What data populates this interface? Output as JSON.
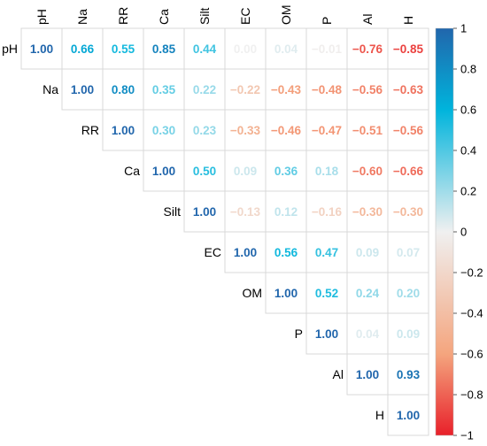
{
  "chart_data": {
    "type": "heatmap",
    "layout": "upper-triangle correlation matrix",
    "variables": [
      "pH",
      "Na",
      "RR",
      "Ca",
      "Silt",
      "EC",
      "OM",
      "P",
      "Al",
      "H"
    ],
    "matrix": [
      [
        1.0,
        0.66,
        0.55,
        0.85,
        0.44,
        0.0,
        0.04,
        -0.01,
        -0.76,
        -0.85
      ],
      [
        null,
        1.0,
        0.8,
        0.35,
        0.22,
        -0.22,
        -0.43,
        -0.48,
        -0.56,
        -0.63
      ],
      [
        null,
        null,
        1.0,
        0.3,
        0.23,
        -0.33,
        -0.46,
        -0.47,
        -0.51,
        -0.56
      ],
      [
        null,
        null,
        null,
        1.0,
        0.5,
        0.09,
        0.36,
        0.18,
        -0.6,
        -0.66
      ],
      [
        null,
        null,
        null,
        null,
        1.0,
        -0.13,
        0.12,
        -0.16,
        -0.3,
        -0.3
      ],
      [
        null,
        null,
        null,
        null,
        null,
        1.0,
        0.56,
        0.47,
        0.09,
        0.07
      ],
      [
        null,
        null,
        null,
        null,
        null,
        null,
        1.0,
        0.52,
        0.24,
        0.2
      ],
      [
        null,
        null,
        null,
        null,
        null,
        null,
        null,
        1.0,
        0.04,
        0.09
      ],
      [
        null,
        null,
        null,
        null,
        null,
        null,
        null,
        null,
        1.0,
        0.93
      ],
      [
        null,
        null,
        null,
        null,
        null,
        null,
        null,
        null,
        null,
        1.0
      ]
    ],
    "labels": [
      [
        "1.00",
        "0.66",
        "0.55",
        "0.85",
        "0.44",
        "0.00",
        "0.04",
        "−0.01",
        "−0.76",
        "−0.85"
      ],
      [
        null,
        "1.00",
        "0.80",
        "0.35",
        "0.22",
        "−0.22",
        "−0.43",
        "−0.48",
        "−0.56",
        "−0.63"
      ],
      [
        null,
        null,
        "1.00",
        "0.30",
        "0.23",
        "−0.33",
        "−0.46",
        "−0.47",
        "−0.51",
        "−0.56"
      ],
      [
        null,
        null,
        null,
        "1.00",
        "0.50",
        "0.09",
        "0.36",
        "0.18",
        "−0.60",
        "−0.66"
      ],
      [
        null,
        null,
        null,
        null,
        "1.00",
        "−0.13",
        "0.12",
        "−0.16",
        "−0.30",
        "−0.30"
      ],
      [
        null,
        null,
        null,
        null,
        null,
        "1.00",
        "0.56",
        "0.47",
        "0.09",
        "0.07"
      ],
      [
        null,
        null,
        null,
        null,
        null,
        null,
        "1.00",
        "0.52",
        "0.24",
        "0.20"
      ],
      [
        null,
        null,
        null,
        null,
        null,
        null,
        null,
        "1.00",
        "0.04",
        "0.09"
      ],
      [
        null,
        null,
        null,
        null,
        null,
        null,
        null,
        null,
        "1.00",
        "0.93"
      ],
      [
        null,
        null,
        null,
        null,
        null,
        null,
        null,
        null,
        null,
        "1.00"
      ]
    ],
    "colorbar": {
      "range": [
        -1,
        1
      ],
      "ticks": [
        1,
        0.8,
        0.6,
        0.4,
        0.2,
        0,
        -0.2,
        -0.4,
        -0.6,
        -0.8,
        -1
      ],
      "tick_labels": [
        "1",
        "0.8",
        "0.6",
        "0.4",
        "0.2",
        "0",
        "−0.2",
        "−0.4",
        "−0.6",
        "−0.8",
        "−1"
      ],
      "placement": "right"
    },
    "colors": {
      "negative_strong": "#e8202a",
      "neutral": "#f0f0f0",
      "positive_mid": "#00b4dc",
      "positive_strong": "#2166ac",
      "grid": "#d9d9d9"
    },
    "grid": true
  }
}
